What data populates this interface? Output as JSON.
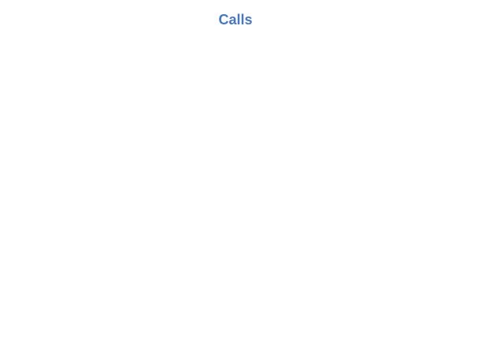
{
  "page": {
    "title": "Calls"
  },
  "colors": {
    "title": "#4a78bd",
    "background": "#ffffff"
  }
}
